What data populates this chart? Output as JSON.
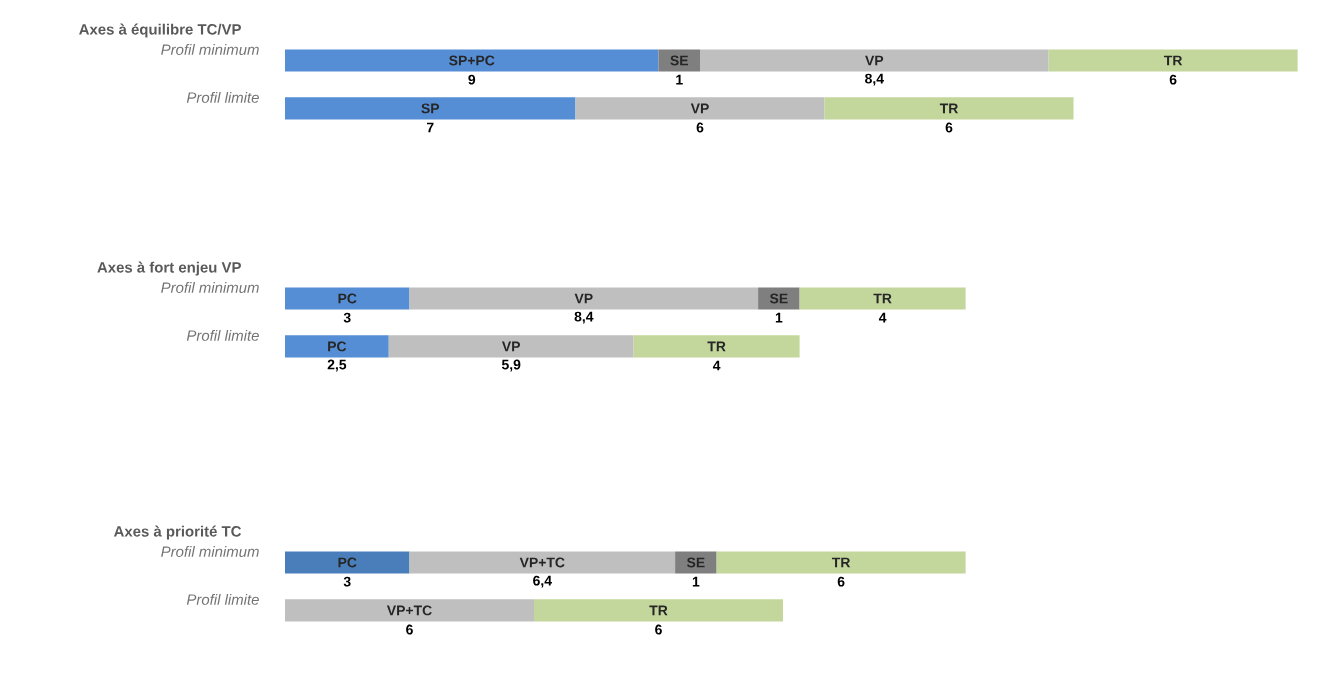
{
  "chart_data": [
    {
      "type": "bar",
      "orientation": "horizontal",
      "stacked": true,
      "title": "Axes à équilibre TC/VP",
      "categories": [
        "Profil minimum",
        "Profil limite"
      ],
      "series": [
        {
          "name": "SP+PC",
          "color": "#558ed5",
          "values": [
            9,
            null
          ],
          "value_labels": [
            "9",
            null
          ]
        },
        {
          "name": "SP",
          "color": "#558ed5",
          "values": [
            null,
            7
          ],
          "value_labels": [
            null,
            "7"
          ]
        },
        {
          "name": "SE",
          "color": "#7f7f7f",
          "values": [
            1,
            null
          ],
          "value_labels": [
            "1",
            null
          ]
        },
        {
          "name": "VP",
          "color": "#bfbfbf",
          "values": [
            8.4,
            6
          ],
          "value_labels": [
            "8,4",
            "6"
          ]
        },
        {
          "name": "TR",
          "color": "#c3d69b",
          "values": [
            6,
            6
          ],
          "value_labels": [
            "6",
            "6"
          ]
        }
      ]
    },
    {
      "type": "bar",
      "orientation": "horizontal",
      "stacked": true,
      "title": "Axes à fort enjeu  VP",
      "categories": [
        "Profil minimum",
        "Profil limite"
      ],
      "series": [
        {
          "name": "PC",
          "color": "#558ed5",
          "values": [
            3,
            2.5
          ],
          "value_labels": [
            "3",
            "2,5"
          ]
        },
        {
          "name": "VP",
          "color": "#bfbfbf",
          "values": [
            8.4,
            5.9
          ],
          "value_labels": [
            "8,4",
            "5,9"
          ]
        },
        {
          "name": "SE",
          "color": "#7f7f7f",
          "values": [
            1,
            null
          ],
          "value_labels": [
            "1",
            null
          ]
        },
        {
          "name": "TR",
          "color": "#c3d69b",
          "values": [
            4,
            4
          ],
          "value_labels": [
            "4",
            "4"
          ]
        }
      ]
    },
    {
      "type": "bar",
      "orientation": "horizontal",
      "stacked": true,
      "title": "Axes à priorité TC",
      "categories": [
        "Profil minimum",
        "Profil limite"
      ],
      "series": [
        {
          "name": "PC",
          "color": "#4a7ebb",
          "values": [
            3,
            null
          ],
          "value_labels": [
            "3",
            null
          ]
        },
        {
          "name": "VP+TC",
          "color": "#bfbfbf",
          "values": [
            6.4,
            6
          ],
          "value_labels": [
            "6,4",
            "6"
          ]
        },
        {
          "name": "SE",
          "color": "#7f7f7f",
          "values": [
            1,
            null
          ],
          "value_labels": [
            "1",
            null
          ]
        },
        {
          "name": "TR",
          "color": "#c3d69b",
          "values": [
            6,
            6
          ],
          "value_labels": [
            "6",
            "6"
          ]
        }
      ]
    }
  ]
}
